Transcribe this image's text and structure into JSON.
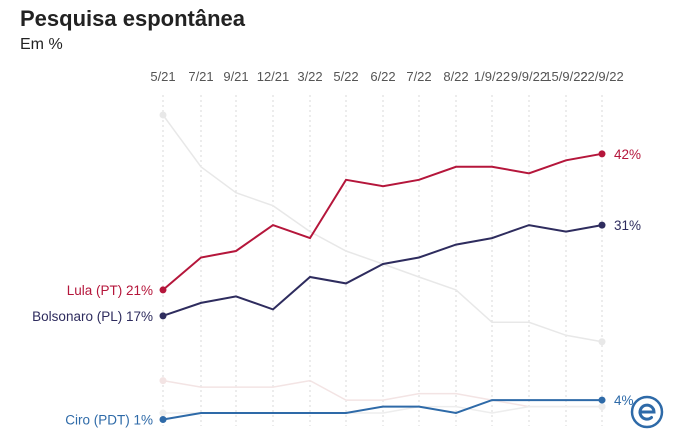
{
  "chart_data": {
    "type": "line",
    "title": "Pesquisa espontânea",
    "subtitle": "Em %",
    "xlabel": "",
    "ylabel": "",
    "grid": "vertical dotted",
    "categories": [
      "5/21",
      "7/21",
      "9/21",
      "12/21",
      "3/22",
      "5/22",
      "6/22",
      "7/22",
      "8/22",
      "1/9/22",
      "9/9/22",
      "15/9/22",
      "22/9/22"
    ],
    "tick_labels": [
      "5/21",
      "7/21",
      "9/21",
      "12/21",
      "3/22",
      "5/22",
      "6/22",
      "7/22",
      "8/22",
      "1/9/22",
      "9/9/22",
      "15/9/22",
      "22/9/22"
    ],
    "ylim": [
      0,
      50
    ],
    "series": [
      {
        "name": "Lula (PT)",
        "color": "#b5163b",
        "values": [
          21,
          26,
          27,
          31,
          29,
          38,
          37,
          38,
          40,
          40,
          39,
          41,
          42
        ],
        "start_label": "Lula (PT) 21%",
        "end_label": "42%"
      },
      {
        "name": "Bolsonaro (PL)",
        "color": "#2e2c5e",
        "values": [
          17,
          19,
          20,
          18,
          23,
          22,
          25,
          26,
          28,
          29,
          31,
          30,
          31
        ],
        "start_label": "Bolsonaro (PL) 17%",
        "end_label": "31%"
      },
      {
        "name": "Ciro (PDT)",
        "color": "#2e6aa8",
        "values": [
          1,
          2,
          2,
          2,
          2,
          2,
          3,
          3,
          2,
          4,
          4,
          4,
          4
        ],
        "start_label": "Ciro (PDT) 1%",
        "end_label": "4%"
      },
      {
        "name": "",
        "color": "#e8e8e8",
        "values": [
          48,
          40,
          36,
          34,
          30,
          27,
          25,
          23,
          21,
          16,
          16,
          14,
          13
        ]
      },
      {
        "name": "",
        "color": "#f3e4e4",
        "values": [
          7,
          6,
          6,
          6,
          7,
          4,
          4,
          5,
          5,
          4,
          3,
          3,
          3
        ]
      },
      {
        "name": "",
        "color": "#ededed",
        "values": [
          2,
          2,
          2,
          2,
          2,
          2,
          2,
          3,
          3,
          2,
          3,
          3,
          3
        ]
      }
    ]
  },
  "logo": {
    "name": "estadao-e-logo",
    "color": "#2e6aa8"
  }
}
